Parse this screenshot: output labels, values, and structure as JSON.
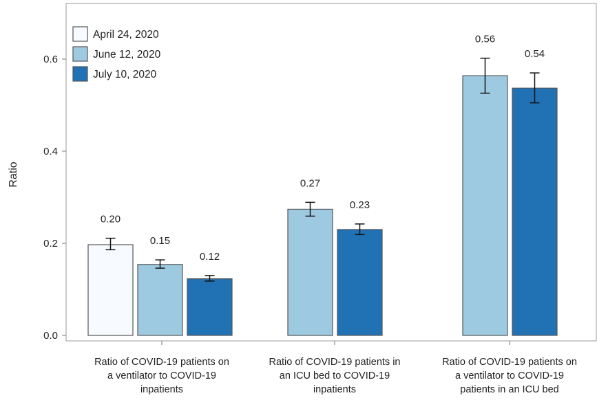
{
  "chart_data": {
    "type": "bar",
    "xlabel": "",
    "ylabel": "Ratio",
    "ylim": [
      0,
      0.7
    ],
    "yticks": [
      "0.0",
      "0.2",
      "0.4",
      "0.6"
    ],
    "grid": false,
    "legend_position": "top-left",
    "categories": [
      [
        "Ratio of COVID-19 patients on",
        "a ventilator to COVID-19",
        "inpatients"
      ],
      [
        "Ratio of COVID-19 patients in",
        "an ICU bed to COVID-19",
        "inpatients"
      ],
      [
        "Ratio of COVID-19 patients on",
        "a ventilator to COVID-19",
        "patients in an ICU bed"
      ]
    ],
    "series": [
      {
        "name": "April 24, 2020",
        "color": "#f7fbff",
        "values": [
          0.197,
          null,
          null
        ],
        "labels": [
          "0.20",
          null,
          null
        ],
        "ci_low": [
          0.186,
          null,
          null
        ],
        "ci_high": [
          0.211,
          null,
          null
        ]
      },
      {
        "name": "June 12, 2020",
        "color": "#9ecae1",
        "values": [
          0.154,
          0.274,
          0.564
        ],
        "labels": [
          "0.15",
          "0.27",
          "0.56"
        ],
        "ci_low": [
          0.146,
          0.259,
          0.526
        ],
        "ci_high": [
          0.164,
          0.289,
          0.602
        ]
      },
      {
        "name": "July 10, 2020",
        "color": "#2171b5",
        "values": [
          0.123,
          0.23,
          0.537
        ],
        "labels": [
          "0.12",
          "0.23",
          "0.54"
        ],
        "ci_low": [
          0.118,
          0.219,
          0.505
        ],
        "ci_high": [
          0.13,
          0.242,
          0.57
        ]
      }
    ]
  }
}
